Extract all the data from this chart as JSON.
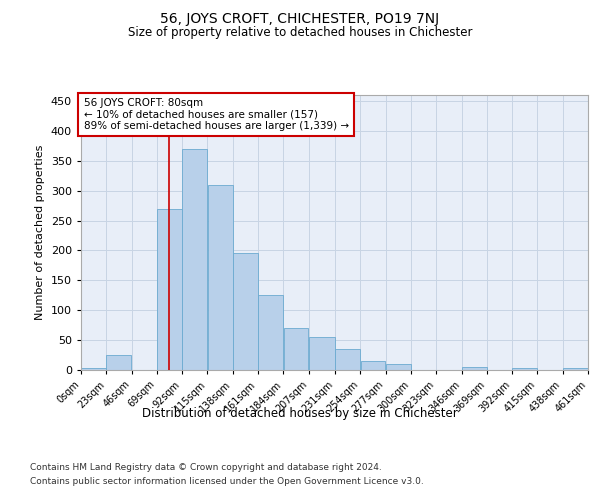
{
  "title": "56, JOYS CROFT, CHICHESTER, PO19 7NJ",
  "subtitle": "Size of property relative to detached houses in Chichester",
  "xlabel": "Distribution of detached houses by size in Chichester",
  "ylabel": "Number of detached properties",
  "footer_line1": "Contains HM Land Registry data © Crown copyright and database right 2024.",
  "footer_line2": "Contains public sector information licensed under the Open Government Licence v3.0.",
  "annotation_title": "56 JOYS CROFT: 80sqm",
  "annotation_line1": "← 10% of detached houses are smaller (157)",
  "annotation_line2": "89% of semi-detached houses are larger (1,339) →",
  "property_size": 80,
  "bin_edges": [
    0,
    23,
    46,
    69,
    92,
    115,
    138,
    161,
    184,
    207,
    231,
    254,
    277,
    300,
    323,
    346,
    369,
    392,
    415,
    438,
    461
  ],
  "bar_heights": [
    3,
    25,
    0,
    270,
    370,
    310,
    195,
    125,
    70,
    55,
    35,
    15,
    10,
    0,
    0,
    5,
    0,
    3,
    0,
    3
  ],
  "bar_color": "#b8d0ea",
  "bar_edge_color": "#6baad0",
  "vline_color": "#cc0000",
  "vline_x": 80,
  "annotation_box_color": "#ffffff",
  "annotation_box_edge": "#cc0000",
  "grid_color": "#c8d4e4",
  "ylim": [
    0,
    460
  ],
  "yticks": [
    0,
    50,
    100,
    150,
    200,
    250,
    300,
    350,
    400,
    450
  ],
  "background_color": "#ffffff",
  "plot_bg_color": "#e8eef8"
}
